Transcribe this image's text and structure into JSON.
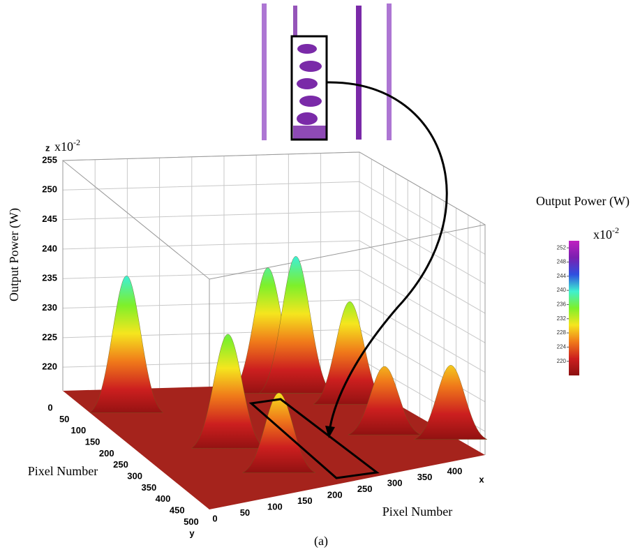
{
  "chart_data": {
    "type": "surface3d",
    "caption": "(a)",
    "z_label": "Output Power (W)",
    "z_name": "z",
    "z_multiplier": {
      "base": "x10",
      "exponent": "-2"
    },
    "x_name": "x",
    "y_name": "y",
    "x_label": "Pixel Number",
    "y_label": "Pixel Number",
    "xlim": [
      0,
      460
    ],
    "ylim": [
      0,
      520
    ],
    "zlim": [
      216,
      255
    ],
    "xticks": [
      0,
      50,
      100,
      150,
      200,
      250,
      300,
      350,
      400
    ],
    "yticks": [
      0,
      50,
      100,
      150,
      200,
      250,
      300,
      350,
      400,
      450,
      500
    ],
    "zticks": [
      220,
      225,
      230,
      235,
      240,
      245,
      250,
      255
    ],
    "grid": true,
    "floor_color": "#a5231c",
    "colorbar": {
      "title": "Output Power (W)",
      "multiplier": {
        "base": "x10",
        "exponent": "-2"
      },
      "lim": [
        216,
        254
      ],
      "ticks": [
        220,
        224,
        228,
        232,
        236,
        240,
        244,
        248,
        252
      ],
      "colors": [
        "#8b1010",
        "#cc1f1f",
        "#f07a1a",
        "#f5e61e",
        "#7ef02a",
        "#3ff0d0",
        "#2f4fe0",
        "#7a1fb0",
        "#c020c0"
      ]
    },
    "peaks": [
      {
        "x": 290,
        "y": 70,
        "z": 238
      },
      {
        "x": 330,
        "y": 80,
        "z": 240
      },
      {
        "x": 45,
        "y": 125,
        "z": 240
      },
      {
        "x": 385,
        "y": 156,
        "z": 234
      },
      {
        "x": 125,
        "y": 312,
        "z": 236
      },
      {
        "x": 368,
        "y": 338,
        "z": 228
      },
      {
        "x": 445,
        "y": 416,
        "z": 229
      },
      {
        "x": 152,
        "y": 440,
        "z": 230
      }
    ]
  }
}
